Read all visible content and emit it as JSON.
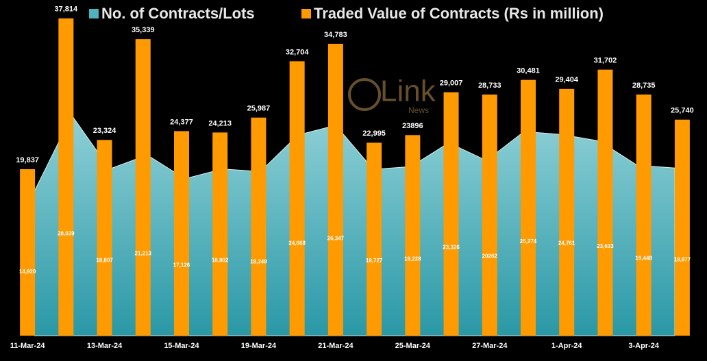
{
  "chart_data": {
    "type": "bar",
    "categories": [
      "11-Mar-24",
      null,
      "13-Mar-24",
      null,
      "15-Mar-24",
      null,
      "19-Mar-24",
      null,
      "21-Mar-24",
      null,
      "25-Mar-24",
      null,
      "27-Mar-24",
      null,
      "1-Apr-24",
      null,
      "3-Apr-24",
      null
    ],
    "series": [
      {
        "name": "No. of Contracts/Lots",
        "type": "area",
        "axis": "y2",
        "color": "#4fb3bf",
        "values": [
          14920,
          28039,
          18807,
          21213,
          17126,
          18802,
          18349,
          24668,
          26347,
          18727,
          19228,
          23326,
          20262,
          25274,
          24761,
          23633,
          19448,
          18977
        ],
        "value_labels": [
          "14,920",
          "28,039",
          "18,807",
          "21,213",
          "17,126",
          "18,802",
          "18,349",
          "24,668",
          "26,347",
          "18,727",
          "19,228",
          "23,326",
          "20262",
          "25,274",
          "24,761",
          "23,633",
          "19,448",
          "18,977"
        ]
      },
      {
        "name": "Traded Value of Contracts (Rs in million)",
        "type": "bar",
        "color": "#ff9a00",
        "values": [
          19837,
          37814,
          23324,
          35339,
          24377,
          24213,
          25987,
          32704,
          34783,
          22995,
          23896,
          29007,
          28733,
          30481,
          29404,
          31702,
          28735,
          25740
        ],
        "value_labels": [
          "19,837",
          "37,814",
          "23,324",
          "35,339",
          "24,377",
          "24,213",
          "25,987",
          "32,704",
          "34,783",
          "22,995",
          "23896",
          "29,007",
          "28,733",
          "30,481",
          "29,404",
          "31,702",
          "28,735",
          "25,740"
        ]
      }
    ],
    "ylim": [
      0,
      40000
    ],
    "y2lim": [
      -10000,
      48000
    ],
    "watermark": {
      "text": "Link",
      "subtext": "News"
    }
  }
}
